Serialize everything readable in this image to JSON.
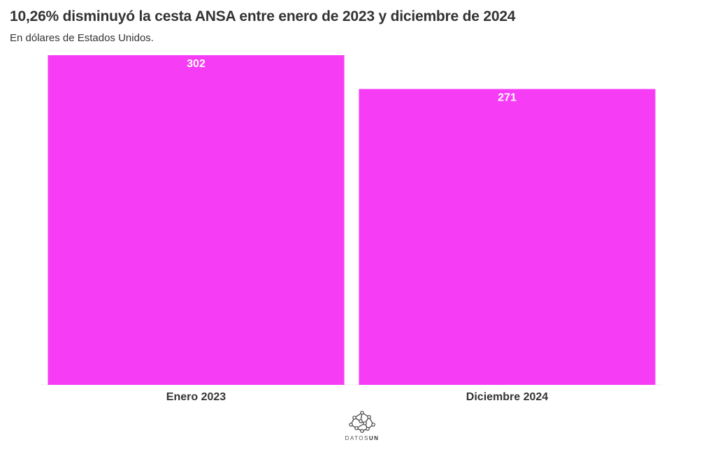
{
  "title": "10,26% disminuyó la cesta ANSA entre enero de 2023 y diciembre de 2024",
  "subtitle": "En dólares de Estados Unidos.",
  "logo": {
    "text_a": "DATOS",
    "text_b": "UN",
    "icon": "network-logo-icon"
  },
  "colors": {
    "bar": "#f73cf6",
    "bar_label": "#ffffff",
    "axis_label": "#333333"
  },
  "chart_data": {
    "type": "bar",
    "categories": [
      "Enero 2023",
      "Diciembre 2024"
    ],
    "values": [
      302,
      271
    ],
    "title": "10,26% disminuyó la cesta ANSA entre enero de 2023 y diciembre de 2024",
    "subtitle": "En dólares de Estados Unidos.",
    "xlabel": "",
    "ylabel": "",
    "ylim": [
      0,
      302
    ],
    "grid": false,
    "legend": "none",
    "data_labels": [
      "302",
      "271"
    ]
  }
}
